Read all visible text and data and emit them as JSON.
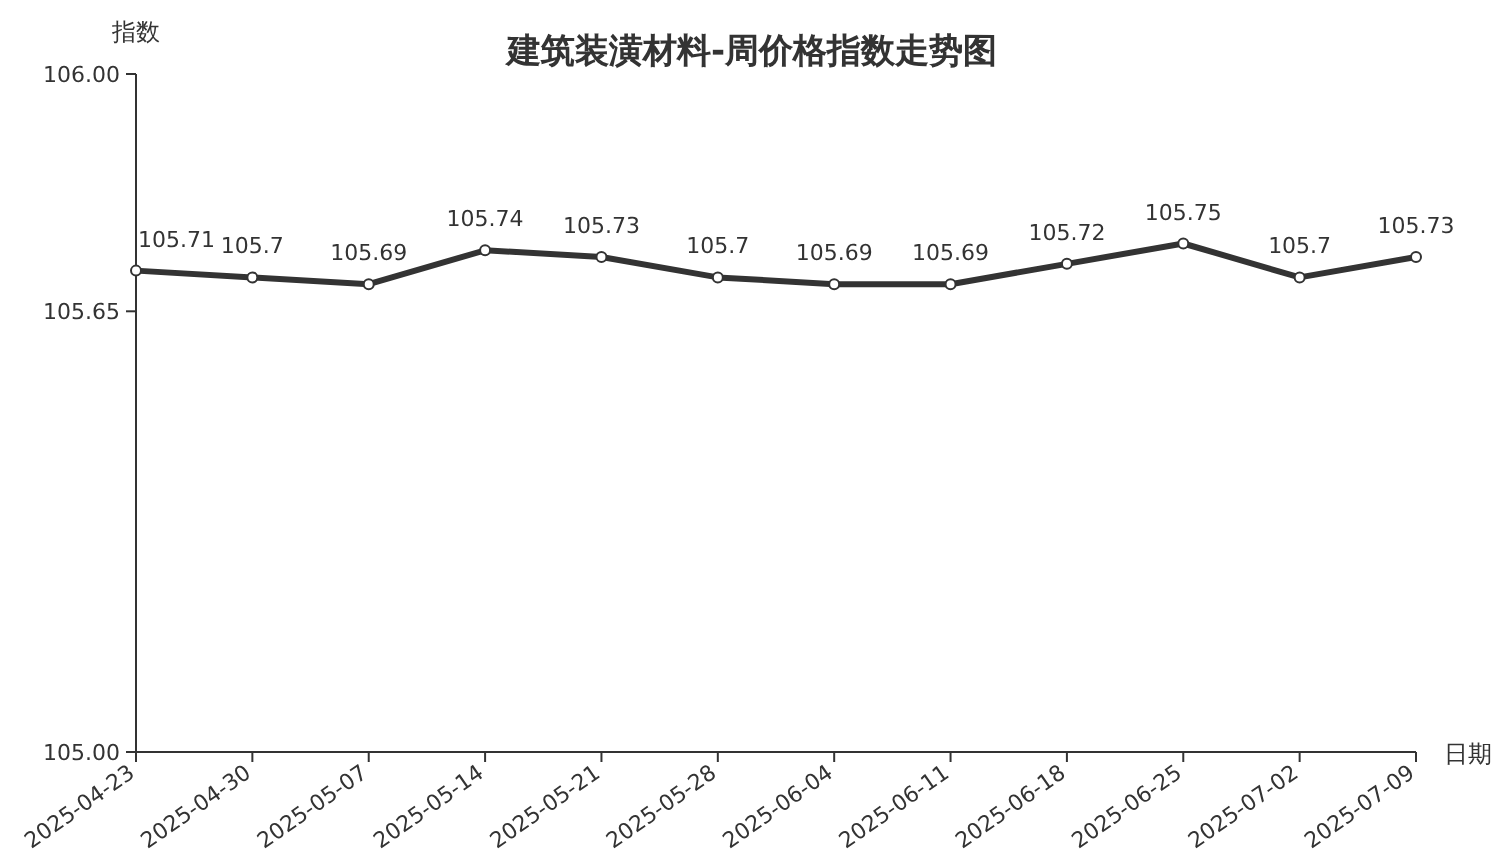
{
  "chart_data": {
    "type": "line",
    "title": "建筑装潢材料-周价格指数走势图",
    "xlabel": "日期",
    "ylabel": "指数",
    "categories": [
      "2025-04-23",
      "2025-04-30",
      "2025-05-07",
      "2025-05-14",
      "2025-05-21",
      "2025-05-28",
      "2025-06-04",
      "2025-06-11",
      "2025-06-18",
      "2025-06-25",
      "2025-07-02",
      "2025-07-09"
    ],
    "series": [
      {
        "color": "#333333",
        "values": [
          105.71,
          105.7,
          105.69,
          105.74,
          105.73,
          105.7,
          105.69,
          105.69,
          105.72,
          105.75,
          105.7,
          105.73
        ]
      }
    ],
    "ylim": [
      105,
      106
    ],
    "yticks": [
      {
        "value": 105,
        "label": "105.00"
      },
      {
        "value": 105.65,
        "label": "105.65"
      },
      {
        "value": 106,
        "label": "106.00"
      }
    ],
    "data_labels": true,
    "marker": "circle",
    "line_style": "solid",
    "grid": false
  }
}
